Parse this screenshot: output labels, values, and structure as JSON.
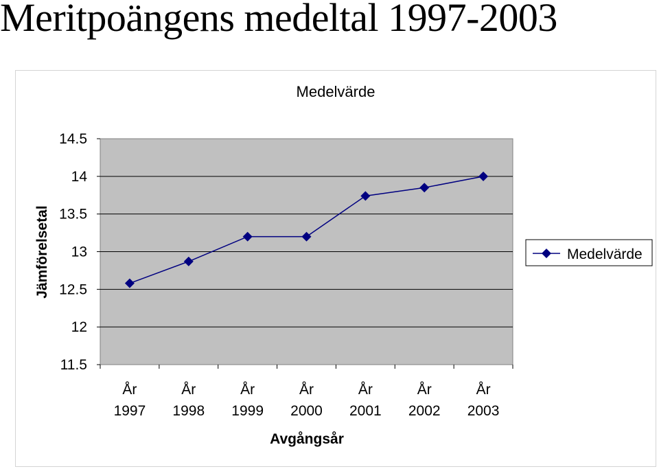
{
  "page": {
    "title": "Meritpoängens medeltal 1997-2003"
  },
  "chart_data": {
    "type": "line",
    "title": "Medelvärde",
    "xlabel": "Avgångsår",
    "ylabel": "Jämförelsetal",
    "categories": [
      [
        "År",
        "1997"
      ],
      [
        "År",
        "1998"
      ],
      [
        "År",
        "1999"
      ],
      [
        "År",
        "2000"
      ],
      [
        "År",
        "2001"
      ],
      [
        "År",
        "2002"
      ],
      [
        "År",
        "2003"
      ]
    ],
    "series": [
      {
        "name": "Medelvärde",
        "values": [
          12.58,
          12.87,
          13.2,
          13.2,
          13.74,
          13.85,
          14.0
        ],
        "color": "#000080"
      }
    ],
    "ylim": [
      11.5,
      14.5
    ],
    "yticks": [
      "11.5",
      "12",
      "12.5",
      "13",
      "13.5",
      "14",
      "14.5"
    ],
    "grid": true,
    "plot_background": "#c0c0c0",
    "legend_position": "right"
  }
}
